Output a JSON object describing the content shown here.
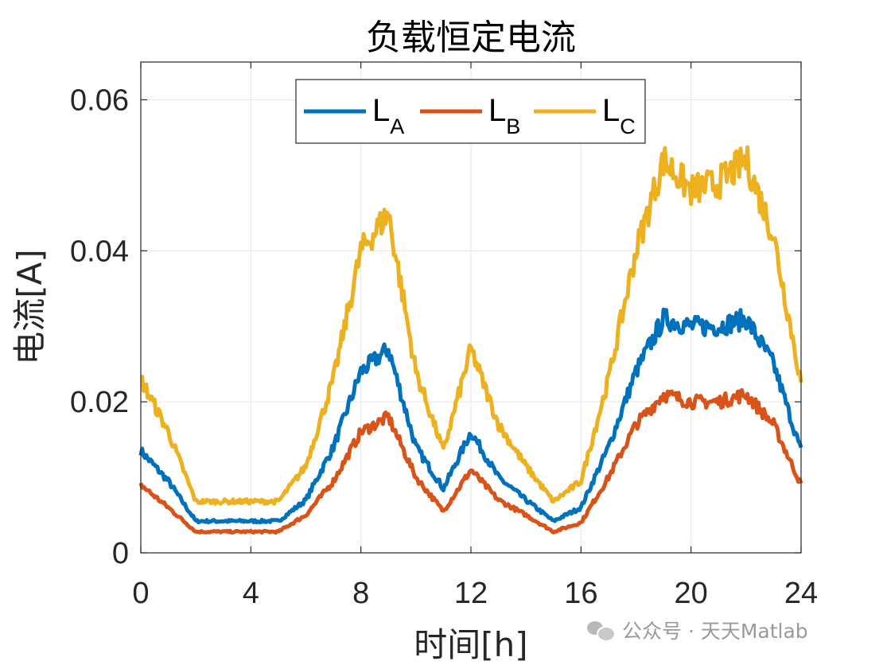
{
  "chart_data": {
    "type": "line",
    "title": "负载恒定电流",
    "xlabel": "时间[h]",
    "ylabel": "电流[A]",
    "xlim": [
      0,
      24
    ],
    "ylim": [
      0,
      0.065
    ],
    "xticks": [
      0,
      4,
      8,
      12,
      16,
      20,
      24
    ],
    "xtick_labels": [
      "0",
      "4",
      "8",
      "12",
      "16",
      "20",
      "24"
    ],
    "yticks": [
      0,
      0.02,
      0.04,
      0.06
    ],
    "ytick_labels": [
      "0",
      "0.02",
      "0.04",
      "0.06"
    ],
    "grid": true,
    "legend_position": "top-center",
    "x": [
      0,
      1,
      2,
      3,
      4,
      5,
      6,
      7,
      8,
      9,
      10,
      11,
      12,
      13,
      14,
      15,
      16,
      17,
      18,
      19,
      20,
      21,
      22,
      23,
      24
    ],
    "series": [
      {
        "name": "L",
        "sub": "A",
        "color": "#0072BD",
        "values": [
          0.0135,
          0.0095,
          0.0042,
          0.0042,
          0.0042,
          0.0042,
          0.007,
          0.014,
          0.024,
          0.027,
          0.014,
          0.0085,
          0.016,
          0.01,
          0.007,
          0.0042,
          0.006,
          0.014,
          0.024,
          0.031,
          0.03,
          0.03,
          0.031,
          0.025,
          0.0135
        ]
      },
      {
        "name": "L",
        "sub": "B",
        "color": "#D95319",
        "values": [
          0.009,
          0.006,
          0.0028,
          0.0028,
          0.0028,
          0.0028,
          0.005,
          0.0095,
          0.016,
          0.018,
          0.01,
          0.0055,
          0.011,
          0.007,
          0.005,
          0.0028,
          0.004,
          0.01,
          0.017,
          0.021,
          0.02,
          0.02,
          0.021,
          0.017,
          0.009
        ]
      },
      {
        "name": "L",
        "sub": "C",
        "color": "#EDB120",
        "values": [
          0.023,
          0.016,
          0.0068,
          0.0068,
          0.0068,
          0.0068,
          0.0115,
          0.023,
          0.04,
          0.045,
          0.024,
          0.0135,
          0.027,
          0.017,
          0.0115,
          0.0068,
          0.0095,
          0.023,
          0.04,
          0.052,
          0.048,
          0.049,
          0.052,
          0.042,
          0.0225
        ]
      }
    ]
  },
  "watermark": {
    "icon": "wechat-icon",
    "text": "公众号 · 天天Matlab"
  }
}
